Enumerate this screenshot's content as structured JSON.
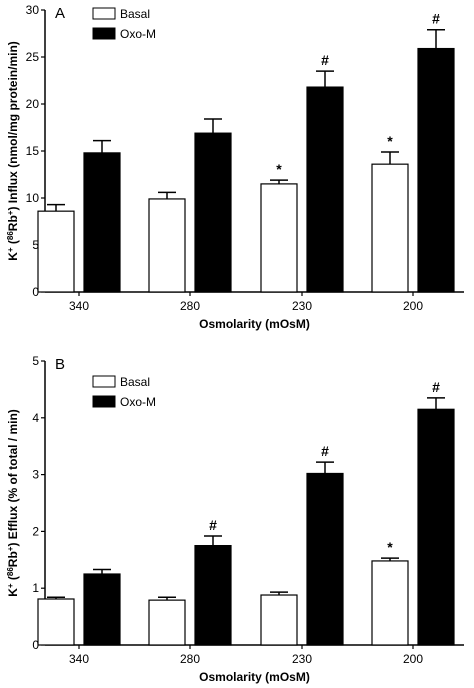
{
  "chart_data": [
    {
      "panel_label": "A",
      "type": "bar",
      "categories": [
        "340",
        "280",
        "230",
        "200"
      ],
      "series": [
        {
          "name": "Basal",
          "color": "#ffffff",
          "values": [
            8.6,
            9.9,
            11.5,
            13.6
          ],
          "errors": [
            0.7,
            0.7,
            0.4,
            1.3
          ],
          "marks": [
            "",
            "",
            "*",
            "*"
          ]
        },
        {
          "name": "Oxo-M",
          "color": "#000000",
          "values": [
            14.8,
            16.9,
            21.8,
            25.9
          ],
          "errors": [
            1.3,
            1.5,
            1.7,
            2.0
          ],
          "marks": [
            "",
            "",
            "#",
            "#"
          ]
        }
      ],
      "ylabel_prefix": "K",
      "ylabel_sup1": "+",
      "ylabel_mid1": " (",
      "ylabel_sup2": "86",
      "ylabel_mid2": "Rb",
      "ylabel_sup3": "+",
      "ylabel_suffix": ") Influx (nmol/mg protein/min)",
      "xlabel": "Osmolarity (mOsM)",
      "ylim": [
        0,
        30
      ],
      "yticks": [
        "0",
        "5",
        "10",
        "15",
        "20",
        "25",
        "30"
      ],
      "legend_position": "top-left",
      "grid": false
    },
    {
      "panel_label": "B",
      "type": "bar",
      "categories": [
        "340",
        "280",
        "230",
        "200"
      ],
      "series": [
        {
          "name": "Basal",
          "color": "#ffffff",
          "values": [
            0.81,
            0.79,
            0.88,
            1.48
          ],
          "errors": [
            0.03,
            0.05,
            0.05,
            0.05
          ],
          "marks": [
            "",
            "",
            "",
            "*"
          ]
        },
        {
          "name": "Oxo-M",
          "color": "#000000",
          "values": [
            1.25,
            1.75,
            3.02,
            4.15
          ],
          "errors": [
            0.08,
            0.17,
            0.2,
            0.2
          ],
          "marks": [
            "",
            "#",
            "#",
            "#"
          ]
        }
      ],
      "ylabel_prefix": "K",
      "ylabel_sup1": "+",
      "ylabel_mid1": " (",
      "ylabel_sup2": "86",
      "ylabel_mid2": "Rb",
      "ylabel_sup3": "+",
      "ylabel_suffix": ") Efflux (% of total / min)",
      "xlabel": "Osmolarity (mOsM)",
      "ylim": [
        0,
        5
      ],
      "yticks": [
        "0",
        "1",
        "2",
        "3",
        "4",
        "5"
      ],
      "legend_position": "top-left",
      "grid": false
    }
  ]
}
